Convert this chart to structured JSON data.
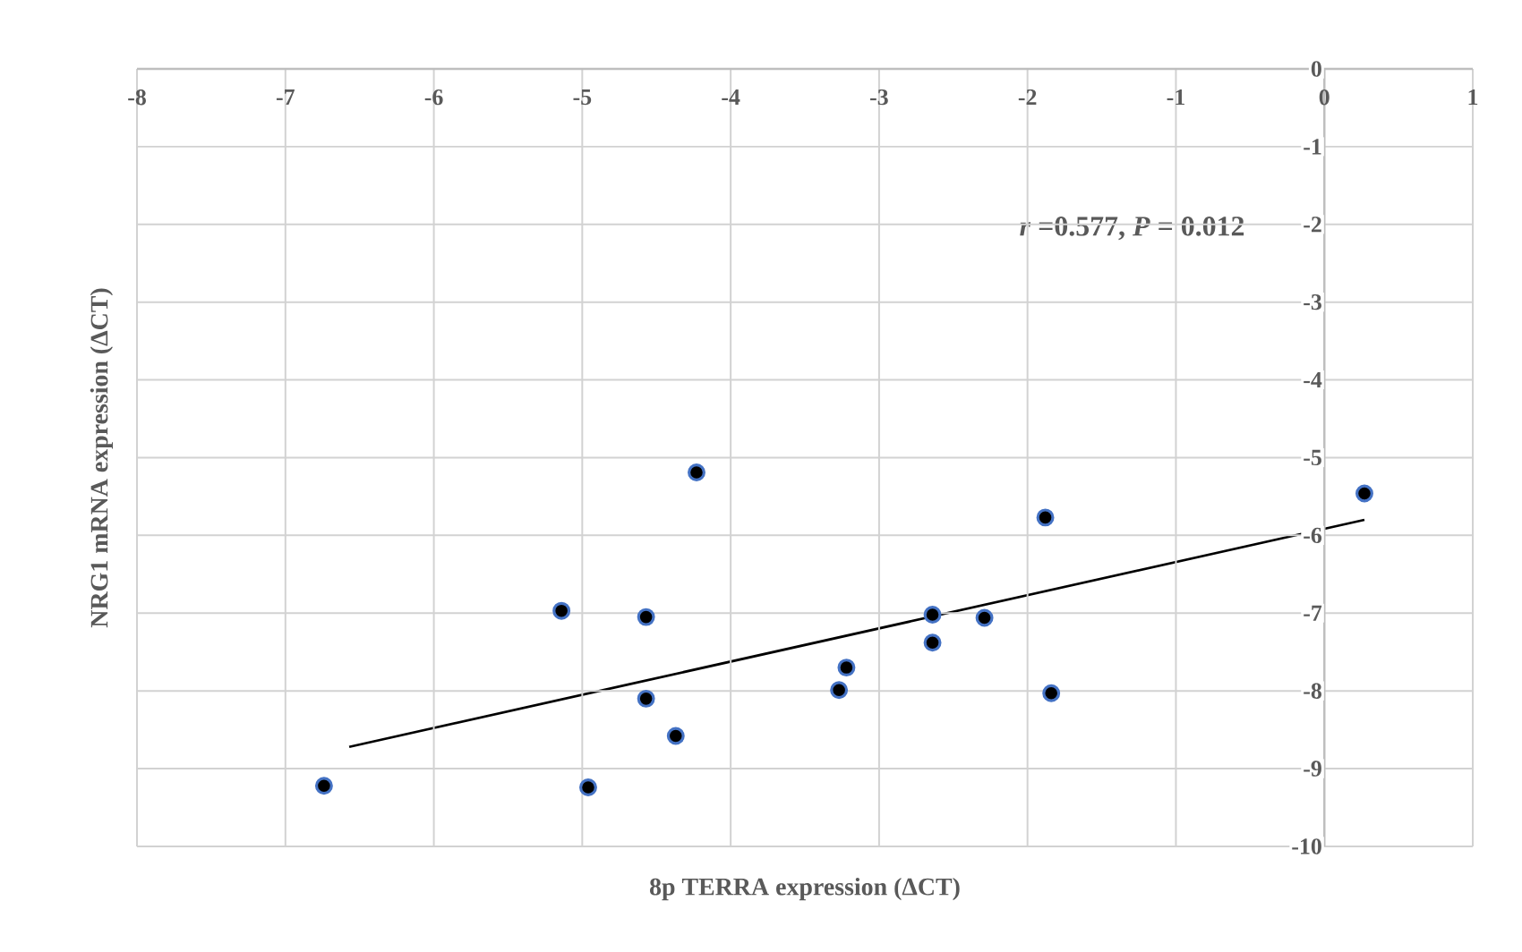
{
  "chart_data": {
    "type": "scatter",
    "xlabel": "8p TERRA expression (ΔCT)",
    "ylabel": "NRG1 mRNA expression (ΔCT)",
    "annotations": [
      "*r* =0.577, *P* = 0.012"
    ],
    "xlim": [
      -8,
      1
    ],
    "ylim": [
      -10,
      0
    ],
    "xticks": [
      -8,
      -7,
      -6,
      -5,
      -4,
      -3,
      -2,
      -1,
      0,
      1
    ],
    "yticks": [
      -10,
      -9,
      -8,
      -7,
      -6,
      -5,
      -4,
      -3,
      -2,
      -1,
      0
    ],
    "grid": true,
    "series": [
      {
        "color": "#000000",
        "marker": "circle",
        "x": [
          -6.74,
          -4.96,
          -5.14,
          -4.57,
          -4.57,
          -4.37,
          -4.23,
          -3.27,
          -3.22,
          -2.64,
          -2.64,
          -2.29,
          -1.88,
          -1.84,
          0.27
        ],
        "values": [
          -9.22,
          -9.24,
          -6.97,
          -7.05,
          -8.1,
          -8.58,
          -5.19,
          -7.99,
          -7.7,
          -7.02,
          -7.38,
          -7.06,
          -5.77,
          -8.03,
          -5.46
        ]
      },
      {
        "type": "line",
        "color": "#000000",
        "marker": "none",
        "x": [
          -6.57,
          0.27
        ],
        "values": [
          -8.72,
          -5.8
        ]
      }
    ]
  }
}
